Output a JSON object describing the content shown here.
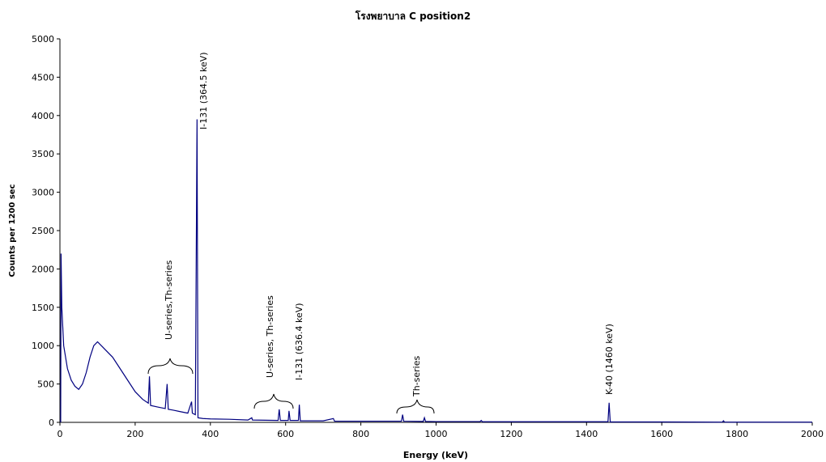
{
  "chart_data": {
    "type": "line",
    "title": "โรงพยาบาล C position2",
    "x_label": "Energy (keV)",
    "y_label": "Counts per 1200 sec",
    "color": "#000080",
    "grid": false,
    "xlim": [
      0,
      2000
    ],
    "xticks": [
      0,
      200,
      400,
      600,
      800,
      1000,
      1200,
      1400,
      1600,
      1800,
      2000
    ],
    "ylim": [
      0,
      5000
    ],
    "yticks": [
      0,
      500,
      1000,
      1500,
      2000,
      2500,
      3000,
      3500,
      4000,
      4500,
      5000
    ],
    "x": [
      2,
      3,
      5,
      10,
      20,
      30,
      40,
      50,
      60,
      70,
      80,
      90,
      100,
      110,
      120,
      140,
      160,
      180,
      200,
      220,
      235,
      238,
      241,
      260,
      280,
      285,
      288,
      300,
      320,
      340,
      350,
      352,
      360,
      364.5,
      367,
      380,
      400,
      450,
      500,
      510,
      512,
      580,
      583,
      586,
      607,
      609,
      612,
      634,
      636.4,
      639,
      700,
      727,
      730,
      800,
      908,
      911,
      914,
      966,
      969,
      972,
      1000,
      1117,
      1120,
      1123,
      1200,
      1457,
      1460,
      1463,
      1600,
      1761,
      1764,
      1767,
      2000
    ],
    "values": [
      0,
      2200,
      1500,
      1000,
      700,
      550,
      470,
      430,
      500,
      650,
      850,
      1000,
      1050,
      1000,
      950,
      850,
      700,
      550,
      400,
      300,
      250,
      600,
      220,
      200,
      180,
      500,
      170,
      160,
      140,
      120,
      270,
      120,
      100,
      3950,
      60,
      50,
      45,
      40,
      30,
      60,
      30,
      25,
      170,
      25,
      25,
      150,
      25,
      25,
      230,
      20,
      20,
      50,
      15,
      15,
      15,
      100,
      15,
      12,
      60,
      12,
      10,
      10,
      25,
      8,
      8,
      8,
      255,
      5,
      5,
      3,
      20,
      3,
      3
    ],
    "annotations": [
      {
        "text": "I-131 (364.5 keV)",
        "color": "#ff0000"
      },
      {
        "text": "U-series,Th-series",
        "color": "#000000"
      },
      {
        "text": "U-series, Th-series",
        "color": "#000000"
      },
      {
        "text": "I-131 (636.4 keV)",
        "color": "#ff0000"
      },
      {
        "text": "Th-series",
        "color": "#000000"
      },
      {
        "text": "K-40 (1460 keV)",
        "color": "#000000"
      }
    ]
  }
}
